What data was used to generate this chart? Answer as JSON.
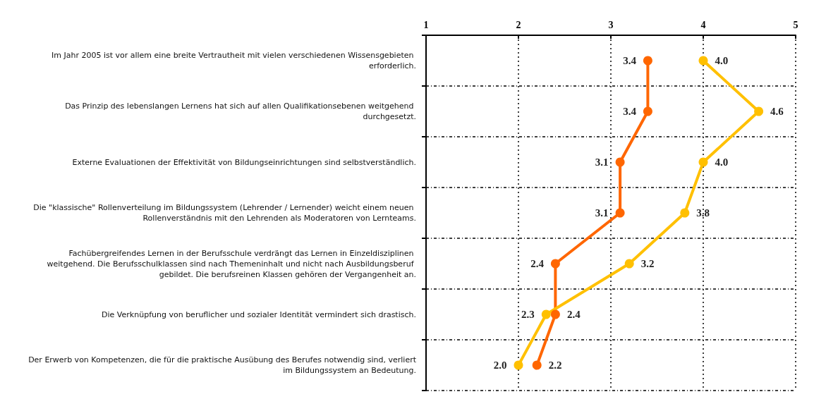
{
  "chart_data": {
    "type": "line",
    "orientation": "horizontal",
    "categories": [
      "Im Jahr 2005 ist vor allem eine breite Vertrautheit mit vielen verschiedenen Wissensgebieten erforderlich.",
      "Das Prinzip des lebenslangen Lernens hat sich auf allen Qualifikationsebenen weitgehend durchgesetzt.",
      "Externe Evaluationen der Effektivität von Bildungseinrichtungen sind selbstverständlich.",
      "Die \"klassische\" Rollenverteilung im Bildungssystem (Lehrender / Lernender) weicht einem neuen Rollenverständnis mit den Lehrenden als Moderatoren von Lernteams.",
      "Fachübergreifendes Lernen in der Berufsschule verdrängt das Lernen in Einzeldisziplinen weitgehend. Die Berufsschulklassen sind nach Themeninhalt und nicht nach Ausbildungsberuf gebildet. Die berufsreinen Klassen gehören der Vergangenheit an.",
      "Die Verknüpfung von beruflicher und sozialer Identität vermindert sich drastisch.",
      "Der Erwerb von Kompetenzen, die für die praktische Ausübung des Berufes notwendig sind, verliert im Bildungssystem an Bedeutung."
    ],
    "series": [
      {
        "color": "#ff6600",
        "values": [
          3.4,
          3.4,
          3.1,
          3.1,
          2.4,
          2.4,
          2.2
        ],
        "value_labels": [
          "3.4",
          "3.4",
          "3.1",
          "3.1",
          "2.4",
          "2.4",
          "2.2"
        ]
      },
      {
        "color": "#ffc000",
        "values": [
          4.0,
          4.6,
          4.0,
          3.8,
          3.2,
          2.3,
          2.0
        ],
        "value_labels": [
          "4.0",
          "4.6",
          "4.0",
          "3.8",
          "3.2",
          "2.3",
          "2.0"
        ]
      }
    ],
    "xlim": [
      1,
      5
    ],
    "xticks": [
      1,
      2,
      3,
      4,
      5
    ],
    "grid": true,
    "marker": "circle",
    "line_style": "solid"
  }
}
